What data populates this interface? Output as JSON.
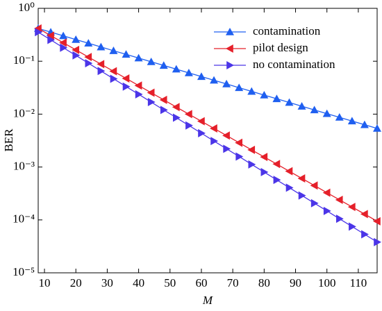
{
  "chart_data": {
    "type": "line",
    "xlabel": "M",
    "ylabel": "BER",
    "x": [
      8,
      12,
      16,
      20,
      24,
      28,
      32,
      36,
      40,
      44,
      48,
      52,
      56,
      60,
      64,
      68,
      72,
      76,
      80,
      84,
      88,
      92,
      96,
      100,
      104,
      108,
      112,
      116
    ],
    "series": [
      {
        "name": "contamination",
        "color": "#1f5ff0",
        "marker": "triangle-up",
        "values": [
          0.417,
          0.355,
          0.302,
          0.257,
          0.219,
          0.186,
          0.158,
          0.135,
          0.115,
          0.0977,
          0.0832,
          0.0708,
          0.0603,
          0.0513,
          0.0437,
          0.0372,
          0.0316,
          0.0269,
          0.0229,
          0.0195,
          0.0166,
          0.0141,
          0.012,
          0.0102,
          0.00871,
          0.00741,
          0.00631,
          0.00537
        ]
      },
      {
        "name": "pilot design",
        "color": "#e5202a",
        "marker": "triangle-left",
        "values": [
          0.417,
          0.305,
          0.224,
          0.164,
          0.12,
          0.0881,
          0.0646,
          0.0473,
          0.0347,
          0.0254,
          0.0186,
          0.0136,
          0.01,
          0.00733,
          0.00537,
          0.00394,
          0.00288,
          0.00211,
          0.00155,
          0.00114,
          0.000832,
          0.00061,
          0.000447,
          0.000327,
          0.00024,
          0.000176,
          0.000129,
          9.44e-05
        ]
      },
      {
        "name": "no contamination",
        "color": "#4b35e8",
        "marker": "triangle-right",
        "values": [
          0.355,
          0.253,
          0.18,
          0.129,
          0.0916,
          0.0653,
          0.0466,
          0.0332,
          0.0237,
          0.0169,
          0.012,
          0.00857,
          0.00611,
          0.00436,
          0.0031,
          0.00221,
          0.00158,
          0.00112,
          0.000802,
          0.000571,
          0.000407,
          0.00029,
          0.000207,
          0.000148,
          0.000105,
          7.5e-05,
          5.35e-05,
          3.81e-05
        ]
      }
    ],
    "xlim": [
      8,
      116
    ],
    "xticks": [
      10,
      20,
      30,
      40,
      50,
      60,
      70,
      80,
      90,
      100,
      110
    ],
    "ylim": [
      1e-05,
      1
    ],
    "ylog": true,
    "yticks": [
      {
        "value": 1,
        "label": "10⁰"
      },
      {
        "value": 0.1,
        "label": "10⁻¹"
      },
      {
        "value": 0.01,
        "label": "10⁻²"
      },
      {
        "value": 0.001,
        "label": "10⁻³"
      },
      {
        "value": 0.0001,
        "label": "10⁻⁴"
      },
      {
        "value": 1e-05,
        "label": "10⁻⁵"
      }
    ],
    "legend": "upper right",
    "grid": false
  }
}
